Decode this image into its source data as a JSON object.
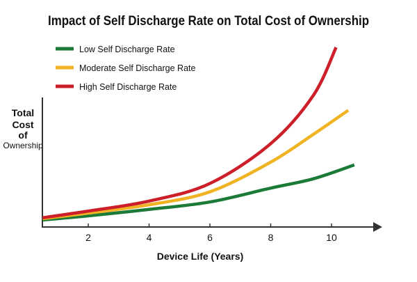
{
  "chart_data": {
    "type": "line",
    "title": "Impact of Self Discharge Rate on Total Cost of Ownership",
    "xlabel": "Device Life (Years)",
    "ylabel": [
      "Total",
      "Cost",
      "of",
      "Ownership"
    ],
    "xticks": [
      2,
      4,
      6,
      8,
      10
    ],
    "xlim": [
      0.5,
      12.1
    ],
    "ylim": [
      0,
      100
    ],
    "y_tick_labels": false,
    "grid": false,
    "legend": "top-left",
    "series": [
      {
        "name": "Low Self Discharge Rate",
        "color": "#1a7a36",
        "x": [
          0.5,
          2,
          4,
          6,
          8,
          9.4,
          10.75
        ],
        "y": [
          3.8,
          6,
          9.5,
          13.5,
          21,
          26,
          33.5
        ]
      },
      {
        "name": "Moderate Self Discharge Rate",
        "color": "#f0b323",
        "x": [
          0.5,
          2,
          4,
          6,
          8,
          9.4,
          10.55
        ],
        "y": [
          4.5,
          7.5,
          12,
          19,
          35,
          50,
          63
        ]
      },
      {
        "name": "High Self Discharge Rate",
        "color": "#cc1f2a",
        "x": [
          0.5,
          2,
          4,
          6,
          8,
          9.4,
          10.15
        ],
        "y": [
          5,
          8.6,
          14,
          23.5,
          45,
          71,
          97
        ]
      }
    ]
  }
}
